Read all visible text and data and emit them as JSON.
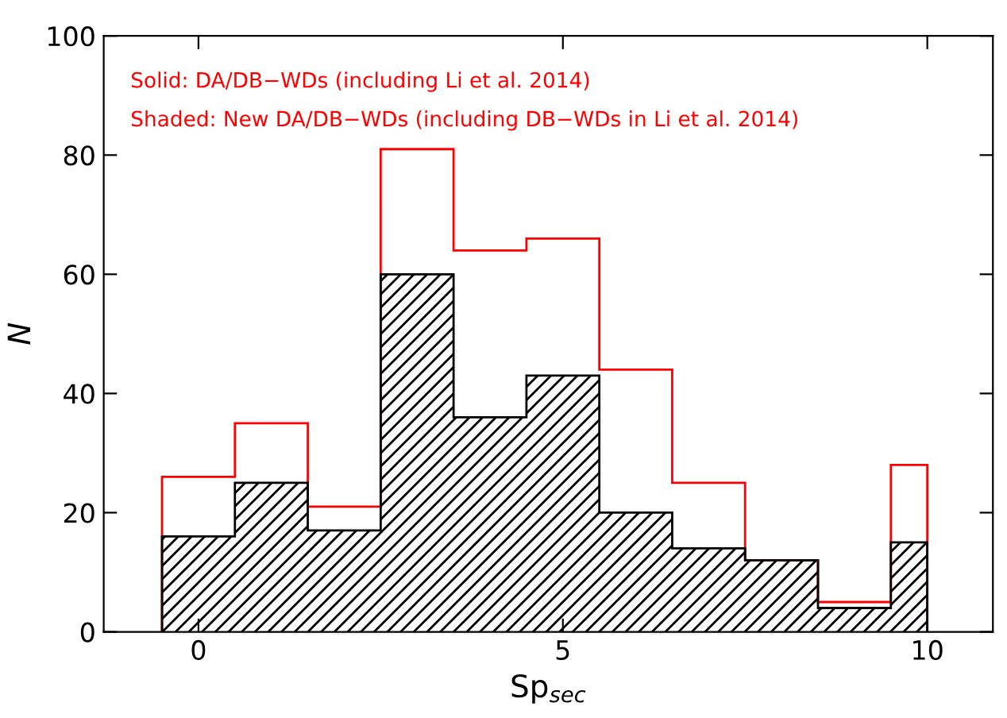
{
  "chart_data": {
    "type": "histogram",
    "xlabel": "Sp$_{sec}$",
    "ylabel": "N",
    "bins": [
      -0.5,
      0.5,
      1.5,
      2.5,
      3.5,
      4.5,
      5.5,
      6.5,
      7.5,
      8.5,
      9.5,
      10
    ],
    "series": [
      {
        "color": "#ff0000",
        "values": [
          26,
          35,
          21,
          81,
          64,
          66,
          44,
          25,
          12,
          5,
          28
        ]
      },
      {
        "color": "#000000",
        "values": [
          16,
          25,
          17,
          60,
          36,
          43,
          20,
          14,
          12,
          4,
          15
        ]
      }
    ],
    "annotations": [
      "Solid: DA/DB−WDs (including Li et al. 2014)",
      "Shaded: New DA/DB−WDs (including DB−WDs in Li et al. 2014)"
    ],
    "xlim": [
      -1.3,
      10.9
    ],
    "ylim": [
      0,
      100
    ],
    "xticks": [
      0,
      5,
      10
    ],
    "yticks": [
      0,
      20,
      40,
      60,
      80,
      100
    ],
    "grid": false,
    "legend": false
  }
}
